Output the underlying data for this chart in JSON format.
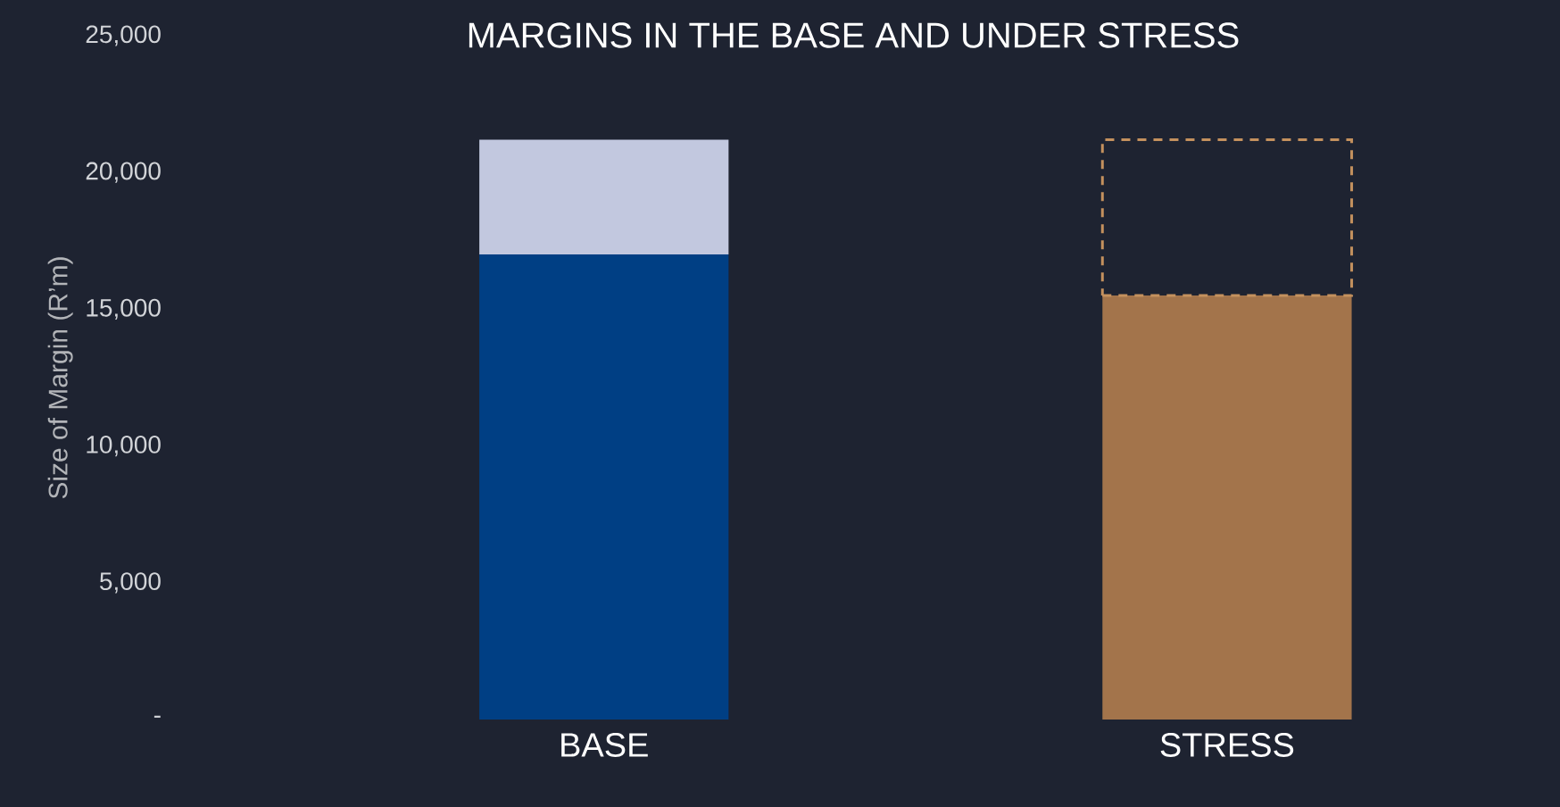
{
  "chart_data": {
    "type": "bar",
    "title": "MARGINS IN THE BASE AND UNDER STRESS",
    "ylabel": "Size of Margin (R’m)",
    "categories": [
      "BASE",
      "STRESS"
    ],
    "stacked": true,
    "grid": false,
    "series": [
      {
        "values": [
          17000,
          15500
        ],
        "colors": [
          "#003f84",
          "#a3744b"
        ],
        "line_style": [
          "solid",
          "solid"
        ]
      },
      {
        "values": [
          4200,
          5700
        ],
        "colors": [
          "#c2c8df",
          "#c4915e"
        ],
        "line_style": [
          "solid",
          "dashed"
        ]
      }
    ],
    "ylim": [
      0,
      25000
    ],
    "yticks": [
      {
        "value": 0,
        "label": "-"
      },
      {
        "value": 5000,
        "label": "5,000"
      },
      {
        "value": 10000,
        "label": "10,000"
      },
      {
        "value": 15000,
        "label": "15,000"
      },
      {
        "value": 20000,
        "label": "20,000"
      },
      {
        "value": 25000,
        "label": "25,000"
      }
    ]
  }
}
